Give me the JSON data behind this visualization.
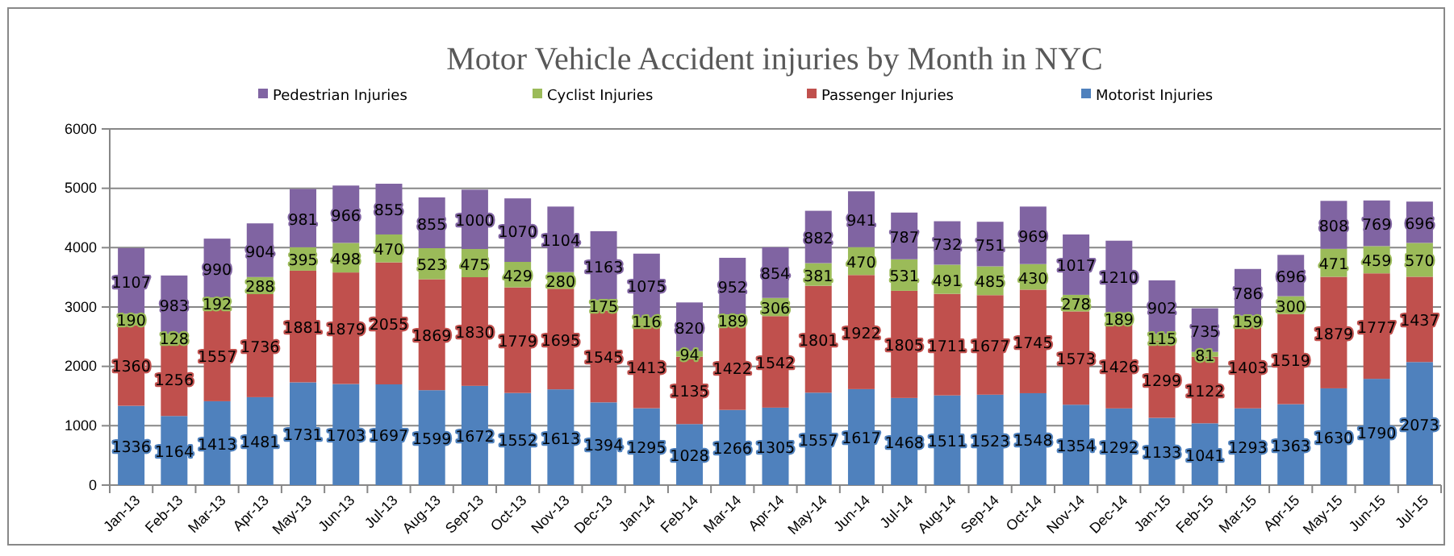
{
  "chart_data": {
    "type": "bar",
    "title": "Motor Vehicle Accident injuries by Month in NYC",
    "stacked": true,
    "data_labels": true,
    "grid": "y",
    "legend": "top",
    "categories": [
      "Jan-13",
      "Feb-13",
      "Mar-13",
      "Apr-13",
      "May-13",
      "Jun-13",
      "Jul-13",
      "Aug-13",
      "Sep-13",
      "Oct-13",
      "Nov-13",
      "Dec-13",
      "Jan-14",
      "Feb-14",
      "Mar-14",
      "Apr-14",
      "May-14",
      "Jun-14",
      "Jul-14",
      "Aug-14",
      "Sep-14",
      "Oct-14",
      "Nov-14",
      "Dec-14",
      "Jan-15",
      "Feb-15",
      "Mar-15",
      "Apr-15",
      "May-15",
      "Jun-15",
      "Jul-15"
    ],
    "ylim": [
      0,
      6000
    ],
    "yticks": [
      0,
      1000,
      2000,
      3000,
      4000,
      5000,
      6000
    ],
    "series": [
      {
        "name": "Motorist Injuries",
        "color": "#4f81bd",
        "values": [
          1336,
          1164,
          1413,
          1481,
          1731,
          1703,
          1697,
          1599,
          1672,
          1552,
          1613,
          1394,
          1295,
          1028,
          1266,
          1305,
          1557,
          1617,
          1468,
          1511,
          1523,
          1548,
          1354,
          1292,
          1133,
          1041,
          1293,
          1363,
          1630,
          1790,
          2073
        ]
      },
      {
        "name": "Passenger Injuries",
        "color": "#c0504d",
        "values": [
          1360,
          1256,
          1557,
          1736,
          1881,
          1879,
          2055,
          1869,
          1830,
          1779,
          1695,
          1545,
          1413,
          1135,
          1422,
          1542,
          1801,
          1922,
          1805,
          1711,
          1677,
          1745,
          1573,
          1426,
          1299,
          1122,
          1403,
          1519,
          1879,
          1777,
          1437
        ]
      },
      {
        "name": "Cyclist Injuries",
        "color": "#9bbb59",
        "values": [
          190,
          128,
          192,
          288,
          395,
          498,
          470,
          523,
          475,
          429,
          280,
          175,
          116,
          94,
          189,
          306,
          381,
          470,
          531,
          491,
          485,
          430,
          278,
          189,
          115,
          81,
          159,
          300,
          471,
          459,
          570
        ]
      },
      {
        "name": "Pedestrian Injuries",
        "color": "#8064a2",
        "values": [
          1107,
          983,
          990,
          904,
          981,
          966,
          855,
          855,
          1000,
          1070,
          1104,
          1163,
          1075,
          820,
          952,
          854,
          882,
          941,
          787,
          732,
          751,
          969,
          1017,
          1210,
          902,
          735,
          786,
          696,
          808,
          769,
          696
        ]
      }
    ]
  }
}
